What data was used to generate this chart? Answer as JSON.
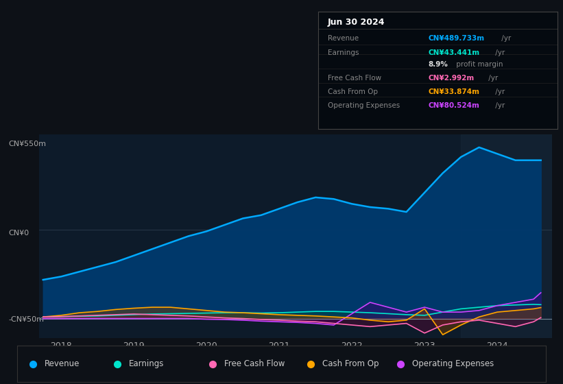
{
  "bg_color": "#0d1117",
  "chart_bg": "#0d1b2a",
  "ylabel_top": "CN¥550m",
  "ylabel_zero": "CN¥0",
  "ylabel_neg": "-CN¥50m",
  "ylim": [
    -60,
    570
  ],
  "xlim_start": 2017.7,
  "xlim_end": 2024.75,
  "xticks": [
    2018,
    2019,
    2020,
    2021,
    2022,
    2023,
    2024
  ],
  "info_box": {
    "title": "Jun 30 2024",
    "rows": [
      {
        "label": "Revenue",
        "value": "CN¥489.733m",
        "suffix": " /yr",
        "color": "#00aaff"
      },
      {
        "label": "Earnings",
        "value": "CN¥43.441m",
        "suffix": " /yr",
        "color": "#00e5cc"
      },
      {
        "label": "",
        "value": "8.9%",
        "suffix": " profit margin",
        "color": "#dddddd"
      },
      {
        "label": "Free Cash Flow",
        "value": "CN¥2.992m",
        "suffix": " /yr",
        "color": "#ff69b4"
      },
      {
        "label": "Cash From Op",
        "value": "CN¥33.874m",
        "suffix": " /yr",
        "color": "#ffa500"
      },
      {
        "label": "Operating Expenses",
        "value": "CN¥80.524m",
        "suffix": " /yr",
        "color": "#cc44ff"
      }
    ]
  },
  "legend_entries": [
    {
      "label": "Revenue",
      "color": "#00aaff"
    },
    {
      "label": "Earnings",
      "color": "#00e5cc"
    },
    {
      "label": "Free Cash Flow",
      "color": "#ff69b4"
    },
    {
      "label": "Cash From Op",
      "color": "#ffa500"
    },
    {
      "label": "Operating Expenses",
      "color": "#cc44ff"
    }
  ],
  "revenue": {
    "color": "#00aaff",
    "x": [
      2017.75,
      2018.0,
      2018.25,
      2018.5,
      2018.75,
      2019.0,
      2019.25,
      2019.5,
      2019.75,
      2020.0,
      2020.25,
      2020.5,
      2020.75,
      2021.0,
      2021.25,
      2021.5,
      2021.75,
      2022.0,
      2022.25,
      2022.5,
      2022.75,
      2023.0,
      2023.25,
      2023.5,
      2023.75,
      2024.0,
      2024.25,
      2024.5,
      2024.6
    ],
    "y": [
      120,
      130,
      145,
      160,
      175,
      195,
      215,
      235,
      255,
      270,
      290,
      310,
      320,
      340,
      360,
      375,
      370,
      355,
      345,
      340,
      330,
      390,
      450,
      500,
      530,
      510,
      490,
      490,
      490
    ]
  },
  "earnings": {
    "color": "#00e5cc",
    "x": [
      2017.75,
      2018.0,
      2018.25,
      2018.5,
      2018.75,
      2019.0,
      2019.25,
      2019.5,
      2019.75,
      2020.0,
      2020.25,
      2020.5,
      2020.75,
      2021.0,
      2021.25,
      2021.5,
      2021.75,
      2022.0,
      2022.25,
      2022.5,
      2022.75,
      2023.0,
      2023.25,
      2023.5,
      2023.75,
      2024.0,
      2024.25,
      2024.5,
      2024.6
    ],
    "y": [
      5,
      6,
      7,
      8,
      10,
      12,
      14,
      15,
      16,
      17,
      18,
      18,
      17,
      18,
      20,
      22,
      22,
      20,
      18,
      15,
      12,
      10,
      20,
      30,
      35,
      40,
      42,
      44,
      43
    ]
  },
  "free_cash_flow": {
    "color": "#ff69b4",
    "x": [
      2017.75,
      2018.0,
      2018.25,
      2018.5,
      2018.75,
      2019.0,
      2019.25,
      2019.5,
      2019.75,
      2020.0,
      2020.25,
      2020.5,
      2020.75,
      2021.0,
      2021.25,
      2021.5,
      2021.75,
      2022.0,
      2022.25,
      2022.5,
      2022.75,
      2023.0,
      2023.25,
      2023.5,
      2023.75,
      2024.0,
      2024.25,
      2024.5,
      2024.6
    ],
    "y": [
      5,
      6,
      8,
      10,
      12,
      14,
      12,
      10,
      8,
      5,
      2,
      0,
      -3,
      -5,
      -8,
      -10,
      -15,
      -20,
      -25,
      -20,
      -15,
      -45,
      -20,
      -10,
      -5,
      -15,
      -25,
      -10,
      3
    ]
  },
  "cash_from_op": {
    "color": "#ffa500",
    "x": [
      2017.75,
      2018.0,
      2018.25,
      2018.5,
      2018.75,
      2019.0,
      2019.25,
      2019.5,
      2019.75,
      2020.0,
      2020.25,
      2020.5,
      2020.75,
      2021.0,
      2021.25,
      2021.5,
      2021.75,
      2022.0,
      2022.25,
      2022.5,
      2022.75,
      2023.0,
      2023.25,
      2023.5,
      2023.75,
      2024.0,
      2024.25,
      2024.5,
      2024.6
    ],
    "y": [
      5,
      10,
      18,
      22,
      28,
      32,
      35,
      35,
      30,
      25,
      20,
      18,
      15,
      12,
      10,
      8,
      5,
      2,
      -5,
      -10,
      -5,
      30,
      -50,
      -20,
      5,
      20,
      25,
      30,
      34
    ]
  },
  "operating_expenses": {
    "color": "#cc44ff",
    "x": [
      2017.75,
      2018.0,
      2018.25,
      2018.5,
      2018.75,
      2019.0,
      2019.25,
      2019.5,
      2019.75,
      2020.0,
      2020.25,
      2020.5,
      2020.75,
      2021.0,
      2021.25,
      2021.5,
      2021.75,
      2022.0,
      2022.25,
      2022.5,
      2022.75,
      2023.0,
      2023.25,
      2023.5,
      2023.75,
      2024.0,
      2024.25,
      2024.5,
      2024.6
    ],
    "y": [
      0,
      0,
      0,
      0,
      0,
      0,
      0,
      0,
      0,
      -2,
      -3,
      -5,
      -8,
      -10,
      -12,
      -15,
      -20,
      15,
      50,
      35,
      20,
      35,
      20,
      20,
      25,
      40,
      50,
      60,
      80
    ]
  }
}
